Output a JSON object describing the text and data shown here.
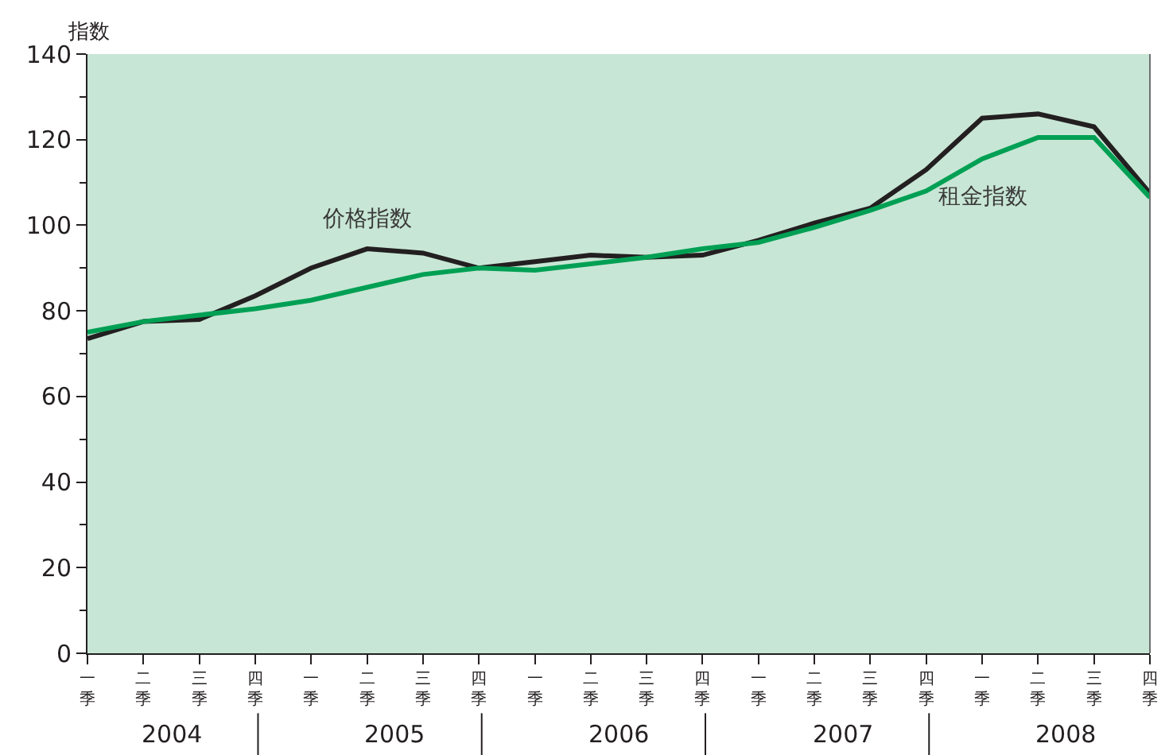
{
  "chart_data": {
    "type": "line",
    "ylabel": "指数",
    "categories": [
      "一季",
      "二季",
      "三季",
      "四季",
      "一季",
      "二季",
      "三季",
      "四季",
      "一季",
      "二季",
      "三季",
      "四季",
      "一季",
      "二季",
      "三季",
      "四季",
      "一季",
      "二季",
      "三季",
      "四季"
    ],
    "annotations": [
      "2004",
      "2005",
      "2006",
      "2007",
      "2008"
    ],
    "series": [
      {
        "name": "价格指数",
        "color": "#231f20",
        "values": [
          73.5,
          77.5,
          78,
          83.5,
          90,
          94.5,
          93.5,
          90,
          91.5,
          93,
          92.5,
          93,
          96.5,
          100.5,
          104,
          113,
          125,
          126,
          123,
          107.5
        ]
      },
      {
        "name": "租金指数",
        "color": "#00a054",
        "values": [
          75,
          77.5,
          79,
          80.5,
          82.5,
          85.5,
          88.5,
          90,
          89.5,
          91,
          92.5,
          94.5,
          96,
          99.5,
          103.5,
          108,
          115.5,
          120.5,
          120.5,
          106.5
        ]
      }
    ],
    "ylim": [
      0,
      140
    ],
    "yticks": [
      0,
      20,
      40,
      60,
      80,
      100,
      120,
      140
    ],
    "grid": false,
    "legend": false,
    "marker": "none",
    "line_style": "solid"
  }
}
